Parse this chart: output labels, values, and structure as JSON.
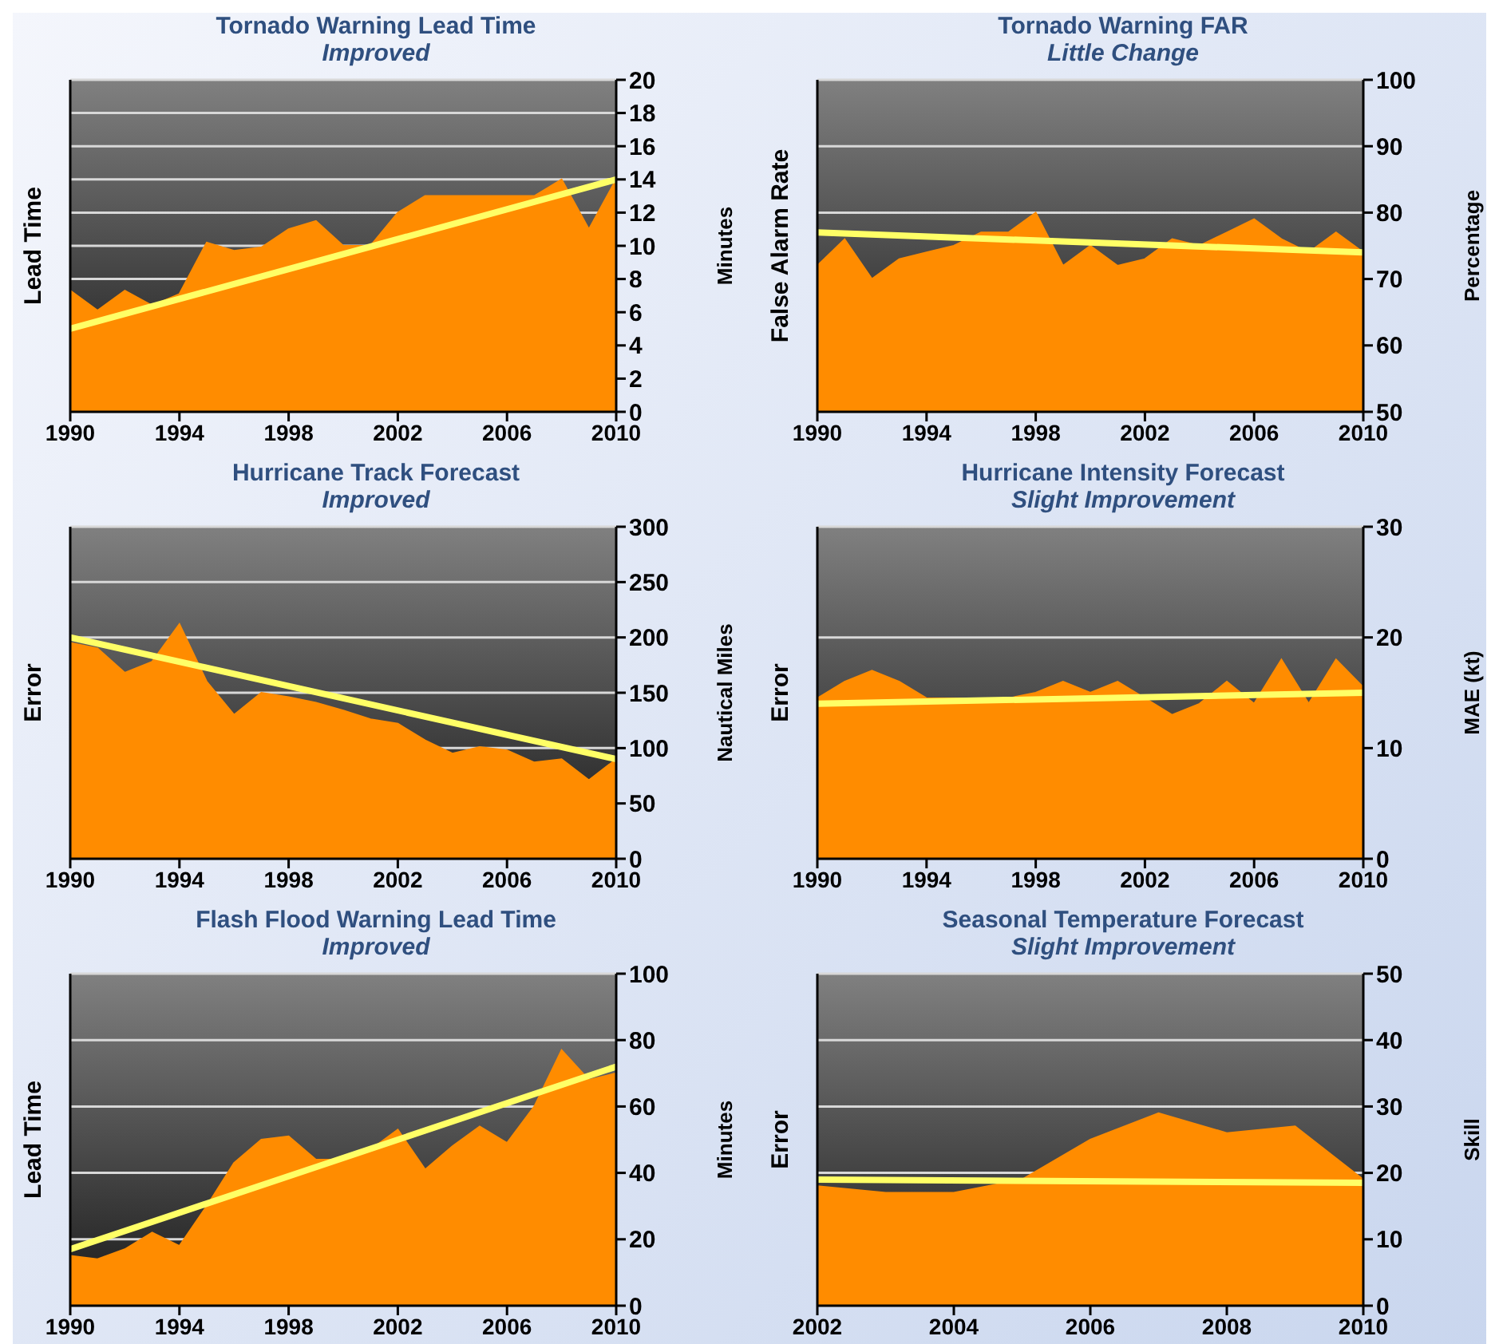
{
  "chart_data": [
    {
      "type": "area",
      "title": "Tornado Warning Lead Time",
      "subtitle": "Improved",
      "ylabel": "Lead Time",
      "y2label": "Minutes",
      "x": [
        1990,
        1991,
        1992,
        1993,
        1994,
        1995,
        1996,
        1997,
        1998,
        1999,
        2000,
        2001,
        2002,
        2003,
        2004,
        2005,
        2006,
        2007,
        2008,
        2009,
        2010
      ],
      "xlim": [
        1990,
        2010
      ],
      "xticks": [
        1990,
        1994,
        1998,
        2002,
        2006,
        2010
      ],
      "y2lim": [
        0,
        20
      ],
      "y2ticks": [
        0,
        2,
        4,
        6,
        8,
        10,
        12,
        14,
        16,
        18,
        20
      ],
      "grid": "y",
      "series": [
        {
          "color": "#ff8c00",
          "axis": "y2",
          "values": [
            7.3,
            6.1,
            7.3,
            6.4,
            7.1,
            10.2,
            9.7,
            9.9,
            11,
            11.5,
            10,
            10,
            12,
            13,
            13,
            13,
            13,
            13,
            14,
            11,
            14
          ]
        },
        {
          "type": "line",
          "color": "#ffff66",
          "axis": "y2",
          "x": [
            1990,
            2010
          ],
          "values": [
            5,
            14
          ]
        }
      ]
    },
    {
      "type": "area",
      "title": "Tornado Warning FAR",
      "subtitle": "Little Change",
      "ylabel": "False Alarm Rate",
      "y2label": "Percentage",
      "x": [
        1990,
        1991,
        1992,
        1993,
        1994,
        1995,
        1996,
        1997,
        1998,
        1999,
        2000,
        2001,
        2002,
        2003,
        2004,
        2005,
        2006,
        2007,
        2008,
        2009,
        2010
      ],
      "xlim": [
        1990,
        2010
      ],
      "xticks": [
        1990,
        1994,
        1998,
        2002,
        2006,
        2010
      ],
      "y2lim": [
        50,
        100
      ],
      "y2ticks": [
        50,
        60,
        70,
        80,
        90,
        100
      ],
      "grid": "y",
      "series": [
        {
          "color": "#ff8c00",
          "axis": "y2",
          "values": [
            72,
            76,
            70,
            73,
            74,
            75,
            77,
            77,
            80,
            72,
            75,
            72,
            73,
            76,
            75,
            77,
            79,
            76,
            74,
            77,
            74
          ]
        },
        {
          "type": "line",
          "color": "#ffff66",
          "axis": "y2",
          "x": [
            1990,
            2010
          ],
          "values": [
            77,
            74
          ]
        }
      ]
    },
    {
      "type": "area",
      "title": "Hurricane Track Forecast",
      "subtitle": "Improved",
      "ylabel": "Error",
      "y2label": "Nautical Miles",
      "x": [
        1990,
        1991,
        1992,
        1993,
        1994,
        1995,
        1996,
        1997,
        1998,
        1999,
        2000,
        2001,
        2002,
        2003,
        2004,
        2005,
        2006,
        2007,
        2008,
        2009,
        2010
      ],
      "xlim": [
        1990,
        2010
      ],
      "xticks": [
        1990,
        1994,
        1998,
        2002,
        2006,
        2010
      ],
      "y2lim": [
        0,
        300
      ],
      "y2ticks": [
        0,
        50,
        100,
        150,
        200,
        250,
        300
      ],
      "grid": "y",
      "series": [
        {
          "color": "#ff8c00",
          "axis": "y2",
          "values": [
            195,
            190,
            168,
            178,
            212,
            160,
            130,
            150,
            146,
            141,
            134,
            126,
            122,
            107,
            95,
            101,
            98,
            87,
            90,
            71,
            90
          ]
        },
        {
          "type": "line",
          "color": "#ffff66",
          "axis": "y2",
          "x": [
            1990,
            2010
          ],
          "values": [
            200,
            90
          ]
        }
      ]
    },
    {
      "type": "area",
      "title": "Hurricane Intensity Forecast",
      "subtitle": "Slight Improvement",
      "ylabel": "Error",
      "y2label": "MAE (kt)",
      "x": [
        1990,
        1991,
        1992,
        1993,
        1994,
        1995,
        1996,
        1997,
        1998,
        1999,
        2000,
        2001,
        2002,
        2003,
        2004,
        2005,
        2006,
        2007,
        2008,
        2009,
        2010
      ],
      "xlim": [
        1990,
        2010
      ],
      "xticks": [
        1990,
        1994,
        1998,
        2002,
        2006,
        2010
      ],
      "y2lim": [
        0,
        30
      ],
      "y2ticks": [
        0,
        10,
        20,
        30
      ],
      "grid": "y",
      "series": [
        {
          "color": "#ff8c00",
          "axis": "y2",
          "values": [
            14.5,
            16,
            17,
            16,
            14.5,
            14.5,
            14.5,
            14.5,
            15,
            16,
            15,
            16,
            14.5,
            13,
            14,
            16,
            14,
            18,
            14,
            18,
            15.5
          ]
        },
        {
          "type": "line",
          "color": "#ffff66",
          "axis": "y2",
          "x": [
            1990,
            2010
          ],
          "values": [
            14,
            15
          ]
        }
      ]
    },
    {
      "type": "area",
      "title": "Flash Flood Warning Lead Time",
      "subtitle": "Improved",
      "ylabel": "Lead Time",
      "y2label": "Minutes",
      "x": [
        1990,
        1991,
        1992,
        1993,
        1994,
        1995,
        1996,
        1997,
        1998,
        1999,
        2000,
        2001,
        2002,
        2003,
        2004,
        2005,
        2006,
        2007,
        2008,
        2009,
        2010
      ],
      "xlim": [
        1990,
        2010
      ],
      "xticks": [
        1990,
        1994,
        1998,
        2002,
        2006,
        2010
      ],
      "y2lim": [
        0,
        100
      ],
      "y2ticks": [
        0,
        20,
        40,
        60,
        80,
        100
      ],
      "grid": "y",
      "series": [
        {
          "color": "#ff8c00",
          "axis": "y2",
          "values": [
            15,
            14,
            17,
            22,
            18,
            30,
            43,
            50,
            51,
            44,
            44,
            47,
            53,
            41,
            48,
            54,
            49,
            60,
            77,
            68,
            70
          ]
        },
        {
          "type": "line",
          "color": "#ffff66",
          "axis": "y2",
          "x": [
            1990,
            2010
          ],
          "values": [
            17,
            72
          ]
        }
      ]
    },
    {
      "type": "area",
      "title": "Seasonal Temperature Forecast",
      "subtitle": "Slight Improvement",
      "ylabel": "Error",
      "y2label": "Skill",
      "x": [
        2002,
        2003,
        2004,
        2005,
        2006,
        2007,
        2008,
        2009,
        2010
      ],
      "xlim": [
        2002,
        2010
      ],
      "xticks": [
        2002,
        2004,
        2006,
        2008,
        2010
      ],
      "y2lim": [
        0,
        50
      ],
      "y2ticks": [
        0,
        10,
        20,
        30,
        40,
        50
      ],
      "grid": "y",
      "series": [
        {
          "color": "#ff8c00",
          "axis": "y2",
          "values": [
            18,
            17,
            17,
            19,
            25,
            29,
            26,
            27,
            19
          ]
        },
        {
          "type": "line",
          "color": "#ffff66",
          "axis": "y2",
          "x": [
            2002,
            2010
          ],
          "values": [
            19,
            18.5
          ]
        }
      ]
    }
  ]
}
